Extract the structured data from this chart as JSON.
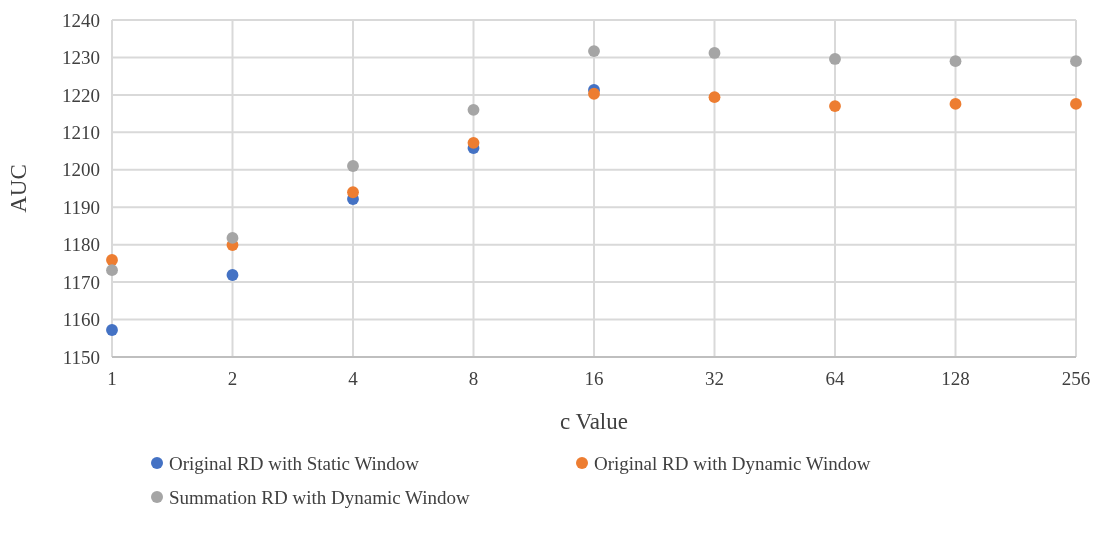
{
  "chart_data": {
    "type": "scatter",
    "xlabel": "c Value",
    "ylabel": "AUC",
    "log": "x",
    "grid": true,
    "marker": "circle",
    "legend": "bottom",
    "x": [
      1,
      2,
      4,
      8,
      16,
      32,
      64,
      128,
      256
    ],
    "xlim": [
      1,
      256
    ],
    "xticks": [
      1,
      2,
      4,
      8,
      16,
      32,
      64,
      128,
      256
    ],
    "ylim": [
      1150,
      1240
    ],
    "yticks": [
      1150,
      1160,
      1170,
      1180,
      1190,
      1200,
      1210,
      1220,
      1230,
      1240
    ],
    "series": [
      {
        "name": "Original RD with Static Window",
        "color": "#4472c4",
        "values": [
          1157.2,
          1171.9,
          1192.2,
          1205.8,
          1221.3,
          null,
          null,
          null,
          null
        ]
      },
      {
        "name": "Original RD with Dynamic Window",
        "color": "#ed7d31",
        "values": [
          1175.9,
          1179.9,
          1194,
          1207.2,
          1220.3,
          1219.4,
          1217,
          1217.6,
          1217.6
        ]
      },
      {
        "name": "Summation RD with Dynamic Window",
        "color": "#a5a5a5",
        "values": [
          1173.2,
          1181.8,
          1201,
          1216,
          1231.7,
          1231.2,
          1229.6,
          1229,
          1229
        ]
      }
    ]
  }
}
